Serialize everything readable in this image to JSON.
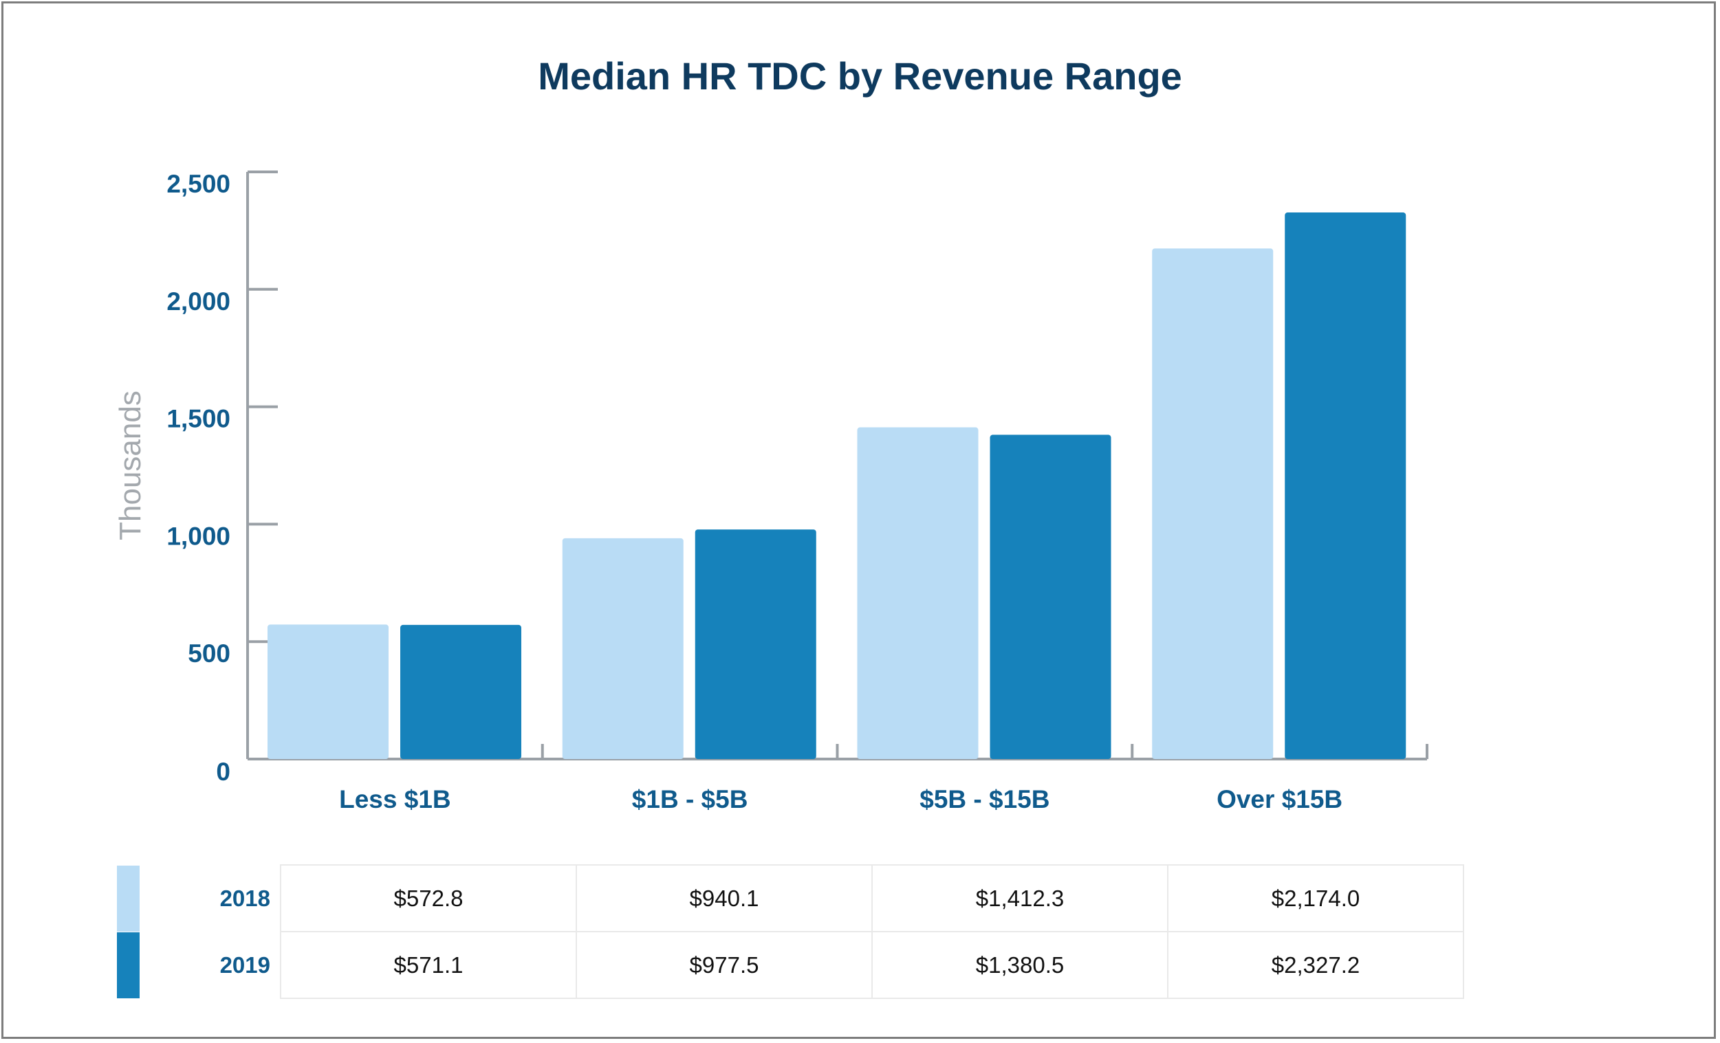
{
  "chart_data": {
    "type": "bar",
    "title": "Median HR TDC by Revenue Range",
    "ylabel": "Thousands",
    "xlabel": "",
    "ylim": [
      0,
      2500
    ],
    "yticks": [
      "0",
      "500",
      "1,000",
      "1,500",
      "2,000",
      "2,500"
    ],
    "categories": [
      "Less $1B",
      "$1B - $5B",
      "$5B - $15B",
      "Over $15B"
    ],
    "series": [
      {
        "name": "2018",
        "color": "#b9dcf5",
        "values": [
          572.8,
          940.1,
          1412.3,
          2174.0
        ],
        "labels": [
          "$572.8",
          "$940.1",
          "$1,412.3",
          "$2,174.0"
        ]
      },
      {
        "name": "2019",
        "color": "#1682bb",
        "values": [
          571.1,
          977.5,
          1380.5,
          2327.2
        ],
        "labels": [
          "$571.1",
          "$977.5",
          "$1,380.5",
          "$2,327.2"
        ]
      }
    ],
    "grid": false,
    "legend": "bottom-table"
  }
}
